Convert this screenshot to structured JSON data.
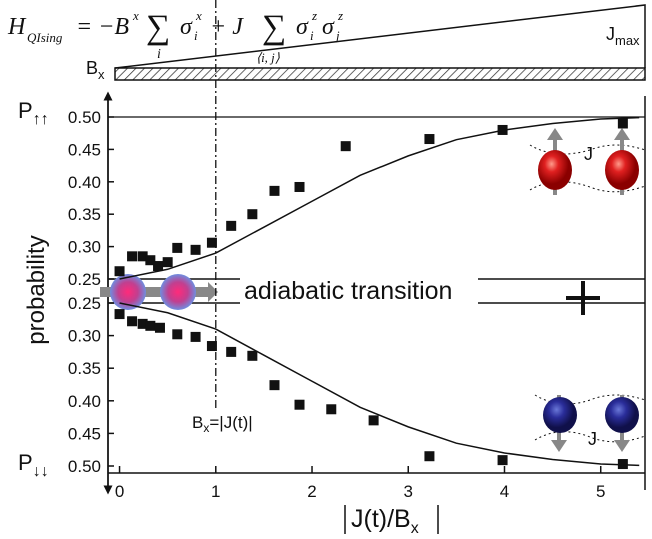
{
  "chart_data": {
    "type": "scatter",
    "formula": {
      "h": "H",
      "h_sub": "QIsing",
      "eq": "= −B",
      "b_sup": "x",
      "sum1": "∑",
      "sum1_sub": "i",
      "sigma1": "σ",
      "sigma1_sub": "i",
      "sigma1_sup": "x",
      "plus": "+ J",
      "sum2": "∑",
      "sum2_sub": "⟨i, j⟩",
      "sigma2": "σ",
      "sigma2_sub": "i",
      "sigma2_sup": "z",
      "sigma3": "σ",
      "sigma3_sub": "j",
      "sigma3_sup": "z"
    },
    "ramp_labels": {
      "jmax": "J",
      "jmax_sub": "max",
      "bx": "B",
      "bx_sub": "x"
    },
    "xlabel": {
      "text": "J(t)/B",
      "sub": "x"
    },
    "ylabel": "probability",
    "y_end_labels": [
      {
        "text": "P",
        "sub": "↑↑"
      },
      {
        "text": "P",
        "sub": "↓↓"
      }
    ],
    "annotations": {
      "transition": "adiabatic transition",
      "threshold": "B",
      "threshold_sub": "x",
      "threshold_rest": "=|J(t)|",
      "j_up": "J",
      "j_down": "J"
    },
    "xlim": [
      -0.12,
      5.46
    ],
    "xticks": [
      0,
      1,
      2,
      3,
      4,
      5
    ],
    "ylim": [
      0.25,
      0.5
    ],
    "yticks": [
      {
        "value": 0.5,
        "label": "0.50"
      },
      0.45,
      {
        "value": 0.4,
        "label": "0.40"
      },
      0.35,
      {
        "value": 0.3,
        "label": "0.30"
      },
      0.25
    ],
    "y2lim": [
      0.25,
      0.5
    ],
    "y2_direction": "down",
    "y2ticks": [
      0.25,
      {
        "value": 0.3,
        "label": "0.30"
      },
      0.35,
      {
        "value": 0.4,
        "label": "0.40"
      },
      0.45,
      {
        "value": 0.5,
        "label": "0.50"
      }
    ],
    "series": [
      {
        "style": "markers",
        "color": "#111111",
        "axis": "y",
        "x": [
          0.0,
          0.13,
          0.24,
          0.32,
          0.4,
          0.5,
          0.6,
          0.79,
          0.96,
          1.16,
          1.38,
          1.61,
          1.87,
          2.35,
          3.22,
          3.98,
          5.23
        ],
        "values": [
          0.262,
          0.285,
          0.285,
          0.279,
          0.27,
          0.276,
          0.298,
          0.295,
          0.306,
          0.332,
          0.35,
          0.386,
          0.392,
          0.455,
          0.466,
          0.48,
          0.49
        ]
      },
      {
        "style": "line",
        "color": "#111111",
        "axis": "y",
        "x": [
          0,
          0.5,
          1,
          1.5,
          2,
          2.5,
          3,
          3.5,
          4,
          4.5,
          5,
          5.4
        ],
        "values": [
          0.25,
          0.265,
          0.29,
          0.33,
          0.37,
          0.41,
          0.44,
          0.465,
          0.48,
          0.49,
          0.497,
          0.499
        ]
      },
      {
        "style": "markers",
        "color": "#111111",
        "axis": "y2",
        "x": [
          0.0,
          0.13,
          0.24,
          0.32,
          0.42,
          0.6,
          0.79,
          0.96,
          1.16,
          1.38,
          1.61,
          1.87,
          2.2,
          2.64,
          3.22,
          3.98,
          5.23
        ],
        "values": [
          0.267,
          0.278,
          0.282,
          0.285,
          0.288,
          0.298,
          0.302,
          0.316,
          0.325,
          0.331,
          0.376,
          0.406,
          0.413,
          0.43,
          0.485,
          0.491,
          0.497
        ]
      },
      {
        "style": "line",
        "color": "#111111",
        "axis": "y2",
        "x": [
          0,
          0.5,
          1,
          1.5,
          2,
          2.5,
          3,
          3.5,
          4,
          4.5,
          5,
          5.4
        ],
        "values": [
          0.25,
          0.265,
          0.29,
          0.33,
          0.37,
          0.41,
          0.44,
          0.465,
          0.48,
          0.49,
          0.497,
          0.499
        ]
      }
    ]
  }
}
